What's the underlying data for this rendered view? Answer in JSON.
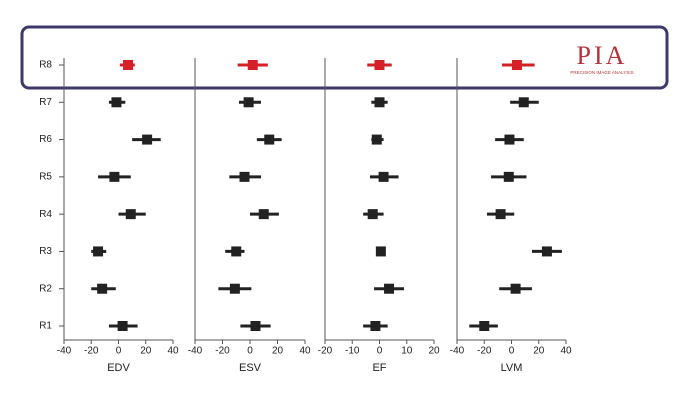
{
  "logo": {
    "mark": "PIA",
    "tagline": "PRECISION IMAGE ANALYSIS"
  },
  "chart_data": [
    {
      "type": "forest",
      "x_label": "EDV",
      "categories": [
        "R1",
        "R2",
        "R3",
        "R4",
        "R5",
        "R6",
        "R7",
        "R8"
      ],
      "values": [
        3,
        -12,
        -15,
        9,
        -3,
        21,
        -1.5,
        7
      ],
      "lower": [
        -7,
        -20,
        -20,
        0,
        -15,
        10,
        -7,
        1
      ],
      "upper": [
        14,
        -2,
        -9,
        20,
        9,
        31,
        5,
        12
      ],
      "colors": [
        "#222222",
        "#222222",
        "#222222",
        "#222222",
        "#222222",
        "#222222",
        "#222222",
        "#d62027"
      ],
      "xlim": [
        -40,
        40
      ],
      "xticks": [
        -40,
        -20,
        0,
        20,
        40
      ]
    },
    {
      "type": "forest",
      "x_label": "ESV",
      "values": [
        4,
        -11,
        -10,
        10,
        -4,
        14,
        -1,
        2
      ],
      "lower": [
        -7,
        -23,
        -18,
        0,
        -15,
        5,
        -8,
        -9
      ],
      "upper": [
        15,
        1,
        -4,
        21,
        8,
        23,
        8,
        13
      ],
      "colors": [
        "#222222",
        "#222222",
        "#222222",
        "#222222",
        "#222222",
        "#222222",
        "#222222",
        "#d62027"
      ],
      "xlim": [
        -40,
        40
      ],
      "xticks": [
        -40,
        -20,
        0,
        20,
        40
      ]
    },
    {
      "type": "forest",
      "x_label": "EF",
      "values": [
        -1.5,
        3.5,
        0.5,
        -2.5,
        1.5,
        -1,
        0,
        0
      ],
      "lower": [
        -6,
        -2,
        -0.5,
        -6,
        -3.5,
        -3,
        -3,
        -4.5
      ],
      "upper": [
        3,
        9,
        2,
        1.5,
        7,
        1.5,
        3,
        4.5
      ],
      "colors": [
        "#222222",
        "#222222",
        "#222222",
        "#222222",
        "#222222",
        "#222222",
        "#222222",
        "#d62027"
      ],
      "xlim": [
        -20,
        20
      ],
      "xticks": [
        -20,
        -10,
        0,
        10,
        20
      ]
    },
    {
      "type": "forest",
      "x_label": "LVM",
      "values": [
        -20,
        3,
        26,
        -8,
        -2,
        -1.5,
        9,
        4
      ],
      "lower": [
        -31,
        -9,
        15,
        -18,
        -15,
        -12,
        -1,
        -7
      ],
      "upper": [
        -10,
        15,
        37,
        2,
        11,
        9,
        20,
        17
      ],
      "colors": [
        "#222222",
        "#222222",
        "#222222",
        "#222222",
        "#222222",
        "#222222",
        "#222222",
        "#d62027"
      ],
      "xlim": [
        -40,
        40
      ],
      "xticks": [
        -40,
        -20,
        0,
        20,
        40
      ]
    }
  ]
}
